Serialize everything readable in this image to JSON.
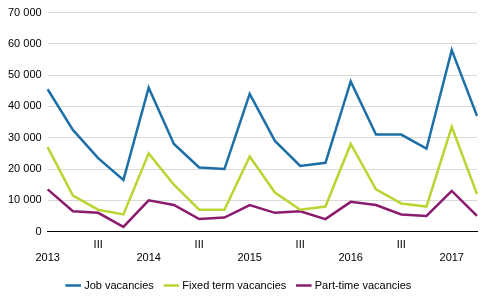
{
  "chart_data": {
    "type": "line",
    "categories": [
      "2013",
      null,
      "III",
      null,
      "2014",
      null,
      "III",
      null,
      "2015",
      null,
      "III",
      null,
      "2016",
      null,
      "III",
      null,
      "2017",
      null
    ],
    "series": [
      {
        "name": "Job vacancies",
        "color": "#1c6fa7",
        "values": [
          45500,
          32500,
          23500,
          16500,
          46000,
          28000,
          20500,
          20000,
          44000,
          29000,
          21000,
          22000,
          48000,
          31000,
          31000,
          26500,
          58000,
          37000
        ]
      },
      {
        "name": "Fixed term vacancies",
        "color": "#bad532",
        "values": [
          27000,
          11500,
          7000,
          5500,
          25000,
          15000,
          7000,
          7000,
          24000,
          12500,
          7000,
          8000,
          28000,
          13500,
          9000,
          8000,
          33500,
          12000
        ]
      },
      {
        "name": "Part-time vacancies",
        "color": "#8c1b6f",
        "values": [
          13500,
          6500,
          6000,
          1500,
          10000,
          8500,
          4000,
          4500,
          8500,
          6000,
          6500,
          4000,
          9500,
          8500,
          5500,
          5000,
          13000,
          5000
        ]
      }
    ],
    "ylim": [
      0,
      70000
    ],
    "yticks": [
      0,
      {
        "value": 10000,
        "label": "10 000"
      },
      {
        "value": 20000,
        "label": "20 000"
      },
      {
        "value": 30000,
        "label": "30 000"
      },
      {
        "value": 40000,
        "label": "40 000"
      },
      {
        "value": 50000,
        "label": "50 000"
      },
      {
        "value": 60000,
        "label": "60 000"
      },
      {
        "value": 70000,
        "label": "70 000"
      }
    ],
    "grid": true,
    "legend": "bottom"
  }
}
